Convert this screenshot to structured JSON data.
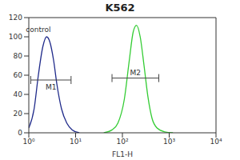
{
  "chart_data": {
    "type": "line",
    "title": "K562",
    "x_label": "FL1-H",
    "log": "x",
    "grid": false,
    "xlim": [
      1,
      10000
    ],
    "xticks": [
      {
        "value": 1,
        "label": "10⁰"
      },
      {
        "value": 10,
        "label": "10¹"
      },
      {
        "value": 100,
        "label": "10²"
      },
      {
        "value": 1000,
        "label": "10³"
      },
      {
        "value": 10000,
        "label": "10⁴"
      }
    ],
    "ylim": [
      0,
      120
    ],
    "yticks": [
      0,
      20,
      40,
      60,
      80,
      100,
      120
    ],
    "series": [
      {
        "color": "#1f2a8a",
        "x": [
          1,
          1.3,
          1.6,
          2,
          2.4,
          2.8,
          3.4,
          4,
          5,
          6.5,
          8.5,
          12
        ],
        "values": [
          5,
          25,
          60,
          90,
          100,
          95,
          75,
          50,
          25,
          10,
          3,
          0
        ]
      },
      {
        "color": "#33cc33",
        "x": [
          40,
          60,
          80,
          110,
          140,
          170,
          200,
          240,
          290,
          350,
          430,
          550,
          800,
          1200
        ],
        "values": [
          0,
          3,
          10,
          35,
          75,
          105,
          112,
          100,
          70,
          38,
          15,
          5,
          1,
          0
        ]
      }
    ],
    "annotations": [
      {
        "text": "control",
        "x": 1.6,
        "y": 108
      }
    ],
    "gates": [
      {
        "label": "M1",
        "x": [
          1.1,
          8
        ],
        "y": 55
      },
      {
        "label": "M2",
        "x": [
          60,
          600
        ],
        "y": 57
      }
    ]
  }
}
